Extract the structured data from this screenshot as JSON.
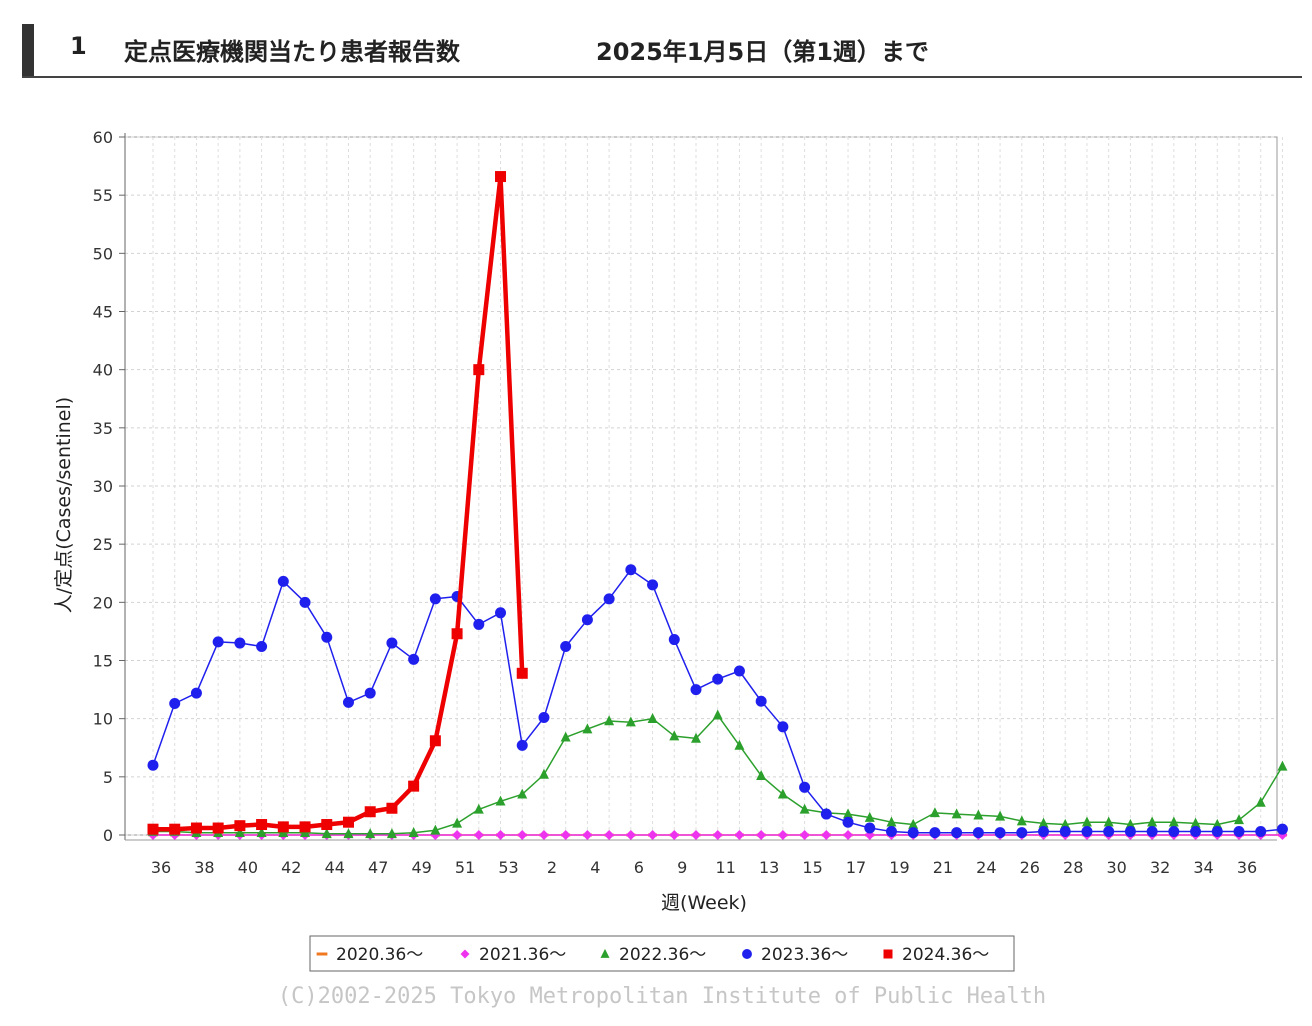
{
  "header": {
    "number": "1",
    "title": "定点医療機関当たり患者報告数",
    "date": "2025年1月5日（第1週）まで"
  },
  "copyright": "(C)2002-2025 Tokyo Metropolitan Institute of Public Health",
  "chart_data": {
    "type": "line",
    "title": "",
    "xlabel": "週(Week)",
    "ylabel": "人/定点(Cases/sentinel)",
    "ylim": [
      0,
      60
    ],
    "yticks": [
      0,
      5,
      10,
      15,
      20,
      25,
      30,
      35,
      40,
      45,
      50,
      55,
      60
    ],
    "x_tick_labels": [
      "36",
      "38",
      "40",
      "42",
      "44",
      "47",
      "49",
      "51",
      "53",
      "2",
      "4",
      "6",
      "9",
      "11",
      "13",
      "15",
      "17",
      "19",
      "21",
      "24",
      "26",
      "28",
      "30",
      "32",
      "34",
      "36"
    ],
    "weeks": [
      "36",
      "37",
      "38",
      "39",
      "40",
      "41",
      "42",
      "43",
      "44",
      "45",
      "46",
      "47",
      "48",
      "49",
      "50",
      "51",
      "52",
      "53",
      "1",
      "2",
      "3",
      "4",
      "5",
      "6",
      "7",
      "8",
      "9",
      "10",
      "11",
      "12",
      "13",
      "14",
      "15",
      "16",
      "17",
      "18",
      "19",
      "20",
      "21",
      "22",
      "23",
      "24",
      "25",
      "26",
      "27",
      "28",
      "29",
      "30",
      "31",
      "32",
      "33",
      "34",
      "35"
    ],
    "grid": true,
    "legend_position": "bottom",
    "series": [
      {
        "name": "2020.36～",
        "color": "#f07820",
        "marker": "dash",
        "values": [
          0,
          0,
          0,
          0,
          0,
          0,
          0,
          0,
          0,
          0,
          0,
          0,
          0,
          0,
          0,
          0,
          0,
          0,
          0,
          0,
          0,
          0,
          0,
          0,
          0,
          0,
          0,
          0,
          0,
          0,
          0,
          0,
          0,
          0,
          0,
          0,
          0,
          0,
          0,
          0,
          0,
          0,
          0,
          0,
          0,
          0,
          0,
          0,
          0,
          0,
          0,
          0,
          0
        ]
      },
      {
        "name": "2021.36～",
        "color": "#ee33ee",
        "marker": "diamond",
        "values": [
          0,
          0,
          0,
          0,
          0,
          0,
          0,
          0,
          0,
          0,
          0,
          0,
          0,
          0,
          0,
          0,
          0,
          0,
          0,
          0,
          0,
          0,
          0,
          0,
          0,
          0,
          0,
          0,
          0,
          0,
          0,
          0,
          0,
          0,
          0,
          0,
          0,
          0,
          0,
          0,
          0,
          0,
          0,
          0,
          0,
          0,
          0,
          0,
          0,
          0,
          0,
          0,
          0
        ]
      },
      {
        "name": "2022.36～",
        "color": "#2ca02c",
        "marker": "triangle",
        "values": [
          0.3,
          0.3,
          0.2,
          0.2,
          0.2,
          0.2,
          0.2,
          0.2,
          0.1,
          0.1,
          0.1,
          0.1,
          0.2,
          0.4,
          1.0,
          2.2,
          2.9,
          3.5,
          5.2,
          8.4,
          9.1,
          9.8,
          9.7,
          10.0,
          8.5,
          8.3,
          10.3,
          7.7,
          5.1,
          3.5,
          2.2,
          1.9,
          1.8,
          1.5,
          1.1,
          0.9,
          1.9,
          1.8,
          1.7,
          1.6,
          1.2,
          1.0,
          0.9,
          1.1,
          1.1,
          0.9,
          1.1,
          1.1,
          1.0,
          0.9,
          1.3,
          2.8,
          5.9
        ]
      },
      {
        "name": "2023.36～",
        "color": "#2020ee",
        "marker": "circle",
        "values": [
          6.0,
          11.3,
          12.2,
          16.6,
          16.5,
          16.2,
          21.8,
          20.0,
          17.0,
          11.4,
          12.2,
          16.5,
          15.1,
          20.3,
          20.5,
          18.1,
          19.1,
          7.7,
          10.1,
          16.2,
          18.5,
          20.3,
          22.8,
          21.5,
          16.8,
          12.5,
          13.4,
          14.1,
          11.5,
          9.3,
          4.1,
          1.8,
          1.1,
          0.6,
          0.3,
          0.2,
          0.2,
          0.2,
          0.2,
          0.2,
          0.2,
          0.3,
          0.3,
          0.3,
          0.3,
          0.3,
          0.3,
          0.3,
          0.3,
          0.3,
          0.3,
          0.3,
          0.5
        ]
      },
      {
        "name": "2024.36～",
        "color": "#ee0000",
        "marker": "square",
        "bold": true,
        "values": [
          0.5,
          0.5,
          0.6,
          0.6,
          0.8,
          0.9,
          0.7,
          0.7,
          0.9,
          1.1,
          2.0,
          2.3,
          4.2,
          8.1,
          17.3,
          40.0,
          56.6,
          13.9
        ]
      }
    ]
  }
}
